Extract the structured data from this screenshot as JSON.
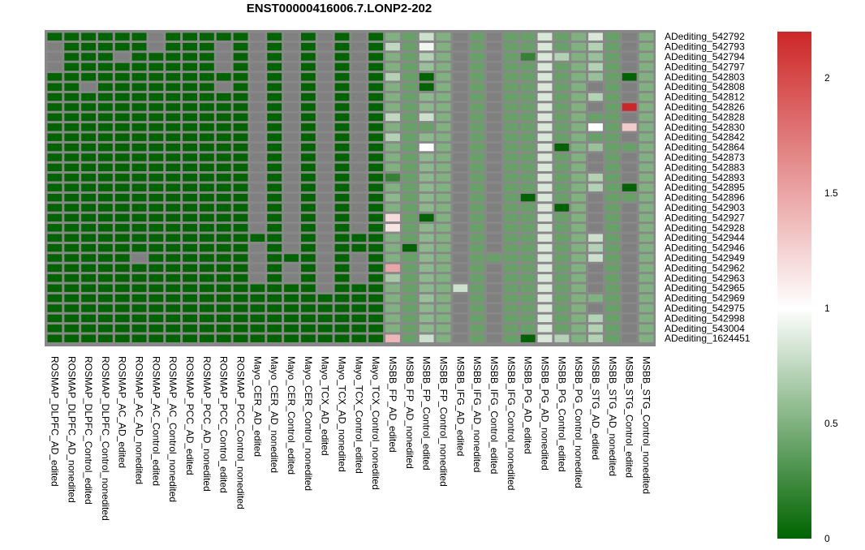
{
  "chart_data": {
    "type": "heatmap",
    "title": "ENST00000416006.7.LONP2-202",
    "xlabel": "",
    "ylabel": "",
    "na_color": "#808080",
    "color_scale": {
      "min": 0,
      "mid": 1,
      "max": 2.2,
      "low_color": "#006400",
      "mid_color": "#ffffff",
      "high_color": "#cd2626",
      "ticks": [
        0,
        0.5,
        1,
        1.5,
        2
      ],
      "tick_labels": [
        "0",
        "0.5",
        "1",
        "1.5",
        "2"
      ]
    },
    "columns": [
      "ROSMAP_DLPFC_AD_edited",
      "ROSMAP_DLPFC_AD_nonedited",
      "ROSMAP_DLPFC_Control_edited",
      "ROSMAP_DLPFC_Control_nonedited",
      "ROSMAP_AC_AD_edited",
      "ROSMAP_AC_AD_nonedited",
      "ROSMAP_AC_Control_edited",
      "ROSMAP_AC_Control_nonedited",
      "ROSMAP_PCC_AD_edited",
      "ROSMAP_PCC_AD_nonedited",
      "ROSMAP_PCC_Control_edited",
      "ROSMAP_PCC_Control_nonedited",
      "Mayo_CER_AD_edited",
      "Mayo_CER_AD_nonedited",
      "Mayo_CER_Control_edited",
      "Mayo_CER_Control_nonedited",
      "Mayo_TCX_AD_edited",
      "Mayo_TCX_AD_nonedited",
      "Mayo_TCX_Control_edited",
      "Mayo_TCX_Control_nonedited",
      "MSBB_FP_AD_edited",
      "MSBB_FP_AD_nonedited",
      "MSBB_FP_Control_edited",
      "MSBB_FP_Control_nonedited",
      "MSBB_IFG_AD_edited",
      "MSBB_IFG_AD_nonedited",
      "MSBB_IFG_Control_edited",
      "MSBB_IFG_Control_nonedited",
      "MSBB_PG_AD_edited",
      "MSBB_PG_AD_nonedited",
      "MSBB_PG_Control_edited",
      "MSBB_PG_Control_nonedited",
      "MSBB_STG_AD_edited",
      "MSBB_STG_AD_nonedited",
      "MSBB_STG_Control_edited",
      "MSBB_STG_Control_nonedited"
    ],
    "rows": [
      "ADediting_542792",
      "ADediting_542793",
      "ADediting_542794",
      "ADediting_542797",
      "ADediting_542803",
      "ADediting_542808",
      "ADediting_542812",
      "ADediting_542826",
      "ADediting_542828",
      "ADediting_542830",
      "ADediting_542842",
      "ADediting_542864",
      "ADediting_542873",
      "ADediting_542883",
      "ADediting_542893",
      "ADediting_542895",
      "ADediting_542896",
      "ADediting_542903",
      "ADediting_542927",
      "ADediting_542928",
      "ADediting_542944",
      "ADediting_542946",
      "ADediting_542949",
      "ADediting_542962",
      "ADediting_542963",
      "ADediting_542965",
      "ADediting_542969",
      "ADediting_542975",
      "ADediting_542998",
      "ADediting_543004",
      "ADediting_1624451"
    ],
    "values": [
      [
        0.0,
        0.0,
        0.0,
        0.0,
        0.0,
        0.0,
        null,
        0.0,
        0.0,
        0.0,
        0.0,
        0.0,
        null,
        0.0,
        null,
        0.0,
        null,
        0.0,
        null,
        0.0,
        0.5,
        0.4,
        0.8,
        0.5,
        null,
        0.4,
        null,
        0.4,
        0.4,
        0.85,
        0.4,
        0.5,
        0.85,
        0.4,
        null,
        0.5
      ],
      [
        null,
        0.0,
        0.0,
        0.0,
        0.0,
        0.0,
        null,
        0.0,
        0.0,
        0.0,
        null,
        0.0,
        null,
        0.0,
        null,
        0.0,
        null,
        0.0,
        null,
        0.0,
        0.75,
        0.4,
        0.95,
        0.5,
        null,
        0.4,
        null,
        0.4,
        0.4,
        0.85,
        0.4,
        0.5,
        0.7,
        0.4,
        null,
        0.5
      ],
      [
        null,
        0.0,
        0.0,
        0.0,
        null,
        0.0,
        0.0,
        0.0,
        0.0,
        0.0,
        null,
        0.0,
        null,
        0.0,
        null,
        0.0,
        null,
        0.0,
        null,
        0.0,
        0.5,
        0.4,
        0.7,
        0.5,
        null,
        0.4,
        null,
        0.4,
        0.2,
        0.85,
        0.7,
        0.5,
        0.6,
        0.4,
        null,
        0.5
      ],
      [
        null,
        0.0,
        0.0,
        0.0,
        0.0,
        0.0,
        0.0,
        0.0,
        0.0,
        0.0,
        null,
        0.0,
        null,
        0.0,
        null,
        0.0,
        null,
        0.0,
        null,
        0.0,
        0.5,
        0.4,
        0.6,
        0.5,
        null,
        0.4,
        null,
        0.4,
        0.4,
        0.85,
        0.4,
        0.5,
        0.7,
        0.4,
        null,
        0.5
      ],
      [
        0.0,
        0.0,
        0.0,
        0.0,
        0.0,
        0.0,
        0.0,
        0.0,
        0.0,
        0.0,
        0.0,
        0.0,
        null,
        0.0,
        null,
        0.0,
        null,
        0.0,
        null,
        0.0,
        0.7,
        0.4,
        0.0,
        0.5,
        null,
        0.4,
        null,
        0.4,
        0.4,
        0.85,
        0.4,
        0.5,
        0.6,
        0.4,
        0.0,
        0.5
      ],
      [
        0.0,
        0.0,
        null,
        0.0,
        0.0,
        0.0,
        0.0,
        0.0,
        0.0,
        0.0,
        null,
        0.0,
        null,
        0.0,
        null,
        0.0,
        null,
        0.0,
        null,
        0.0,
        0.5,
        0.4,
        0.0,
        0.5,
        null,
        0.4,
        null,
        0.4,
        0.4,
        0.85,
        0.4,
        0.5,
        null,
        0.4,
        null,
        0.5
      ],
      [
        0.0,
        0.0,
        0.0,
        0.0,
        0.0,
        0.0,
        0.0,
        0.0,
        0.0,
        0.0,
        0.0,
        0.0,
        null,
        0.0,
        null,
        0.0,
        null,
        0.0,
        null,
        0.0,
        0.5,
        0.4,
        0.55,
        0.5,
        null,
        0.4,
        null,
        0.4,
        0.4,
        0.85,
        0.4,
        0.5,
        0.7,
        0.4,
        null,
        0.5
      ],
      [
        0.0,
        0.0,
        0.0,
        0.0,
        0.0,
        0.0,
        0.0,
        0.0,
        0.0,
        0.0,
        0.0,
        0.0,
        null,
        0.0,
        null,
        0.0,
        null,
        0.0,
        null,
        0.0,
        0.5,
        0.4,
        0.55,
        0.5,
        null,
        0.4,
        null,
        0.4,
        0.4,
        0.85,
        0.4,
        0.5,
        null,
        0.4,
        2.2,
        0.5
      ],
      [
        0.0,
        0.0,
        0.0,
        0.0,
        0.0,
        0.0,
        0.0,
        0.0,
        0.0,
        0.0,
        0.0,
        0.0,
        null,
        0.0,
        null,
        0.0,
        null,
        0.0,
        null,
        0.0,
        0.75,
        0.4,
        0.8,
        0.5,
        null,
        0.4,
        null,
        0.4,
        0.4,
        0.85,
        0.4,
        0.5,
        0.4,
        0.4,
        null,
        0.5
      ],
      [
        0.0,
        0.0,
        0.0,
        0.0,
        0.0,
        0.0,
        0.0,
        0.0,
        0.0,
        0.0,
        0.0,
        0.0,
        null,
        0.0,
        null,
        0.0,
        null,
        0.0,
        null,
        0.0,
        0.5,
        0.4,
        0.4,
        0.5,
        null,
        0.4,
        null,
        0.4,
        0.4,
        0.85,
        0.4,
        0.5,
        1.0,
        0.4,
        1.3,
        0.5
      ],
      [
        0.0,
        0.0,
        0.0,
        0.0,
        0.0,
        0.0,
        0.0,
        0.0,
        0.0,
        0.0,
        0.0,
        0.0,
        null,
        0.0,
        null,
        0.0,
        null,
        0.0,
        null,
        0.0,
        0.7,
        0.4,
        0.55,
        0.5,
        null,
        0.4,
        null,
        0.4,
        0.4,
        0.85,
        0.4,
        0.5,
        0.4,
        0.4,
        null,
        0.5
      ],
      [
        0.0,
        0.0,
        0.0,
        0.0,
        0.0,
        0.0,
        0.0,
        0.0,
        0.0,
        0.0,
        0.0,
        0.0,
        null,
        0.0,
        null,
        0.0,
        null,
        0.0,
        null,
        0.0,
        0.5,
        0.4,
        1.0,
        0.5,
        null,
        0.4,
        null,
        0.4,
        0.4,
        0.85,
        0.0,
        0.5,
        0.6,
        0.4,
        0.4,
        0.5
      ],
      [
        0.0,
        0.0,
        0.0,
        0.0,
        0.0,
        0.0,
        0.0,
        0.0,
        0.0,
        0.0,
        0.0,
        0.0,
        null,
        0.0,
        null,
        0.0,
        null,
        0.0,
        null,
        0.0,
        0.5,
        0.4,
        0.55,
        0.5,
        null,
        0.4,
        null,
        0.4,
        0.4,
        0.85,
        0.4,
        0.5,
        null,
        0.4,
        null,
        0.5
      ],
      [
        0.0,
        0.0,
        0.0,
        0.0,
        0.0,
        0.0,
        0.0,
        0.0,
        0.0,
        0.0,
        0.0,
        0.0,
        null,
        0.0,
        null,
        0.0,
        null,
        0.0,
        null,
        0.0,
        0.5,
        0.4,
        0.55,
        0.5,
        null,
        0.4,
        null,
        0.4,
        0.4,
        0.85,
        0.4,
        0.5,
        null,
        0.4,
        null,
        0.5
      ],
      [
        0.0,
        0.0,
        0.0,
        0.0,
        0.0,
        0.0,
        0.0,
        0.0,
        0.0,
        0.0,
        0.0,
        0.0,
        null,
        0.0,
        null,
        0.0,
        null,
        0.0,
        null,
        0.0,
        0.2,
        0.4,
        0.55,
        0.5,
        null,
        0.4,
        null,
        0.4,
        0.4,
        0.85,
        0.4,
        0.5,
        0.7,
        0.4,
        null,
        0.5
      ],
      [
        0.0,
        0.0,
        0.0,
        0.0,
        0.0,
        0.0,
        0.0,
        0.0,
        0.0,
        0.0,
        0.0,
        0.0,
        null,
        0.0,
        null,
        0.0,
        null,
        0.0,
        null,
        0.0,
        0.5,
        0.4,
        0.55,
        0.5,
        null,
        0.4,
        null,
        0.4,
        0.4,
        0.85,
        0.4,
        0.5,
        0.7,
        0.4,
        0.0,
        0.5
      ],
      [
        0.0,
        0.0,
        0.0,
        0.0,
        0.0,
        0.0,
        0.0,
        0.0,
        0.0,
        0.0,
        0.0,
        0.0,
        null,
        0.0,
        null,
        0.0,
        null,
        0.0,
        null,
        0.0,
        0.55,
        0.4,
        0.55,
        0.5,
        null,
        0.4,
        null,
        0.4,
        0.0,
        0.85,
        0.4,
        0.5,
        null,
        0.4,
        0.4,
        0.5
      ],
      [
        0.0,
        0.0,
        0.0,
        0.0,
        0.0,
        0.0,
        0.0,
        0.0,
        0.0,
        0.0,
        0.0,
        0.0,
        null,
        0.0,
        null,
        0.0,
        null,
        0.0,
        null,
        0.0,
        0.5,
        0.4,
        0.55,
        0.5,
        null,
        0.4,
        null,
        0.4,
        0.4,
        0.85,
        0.0,
        0.5,
        null,
        0.4,
        null,
        0.5
      ],
      [
        0.0,
        0.0,
        0.0,
        0.0,
        0.0,
        0.0,
        0.0,
        0.0,
        0.0,
        0.0,
        0.0,
        0.0,
        null,
        0.0,
        null,
        0.0,
        null,
        0.0,
        null,
        0.0,
        1.2,
        0.4,
        0.0,
        0.5,
        null,
        0.4,
        null,
        0.4,
        0.4,
        0.85,
        0.4,
        0.5,
        null,
        0.4,
        null,
        0.5
      ],
      [
        0.0,
        0.0,
        0.0,
        0.0,
        0.0,
        0.0,
        0.0,
        0.0,
        0.0,
        0.0,
        0.0,
        0.0,
        null,
        0.0,
        null,
        0.0,
        null,
        0.0,
        null,
        0.0,
        1.15,
        0.4,
        0.55,
        0.5,
        null,
        0.4,
        null,
        0.4,
        0.4,
        0.85,
        0.4,
        0.5,
        null,
        0.4,
        null,
        0.5
      ],
      [
        0.0,
        0.0,
        0.0,
        0.0,
        0.0,
        0.0,
        0.0,
        0.0,
        0.0,
        0.0,
        0.0,
        0.0,
        0.0,
        0.0,
        null,
        0.0,
        null,
        0.0,
        0.0,
        0.0,
        0.5,
        0.4,
        0.55,
        0.5,
        null,
        0.4,
        null,
        0.4,
        0.4,
        0.85,
        0.4,
        0.5,
        0.8,
        0.4,
        null,
        0.5
      ],
      [
        0.0,
        0.0,
        0.0,
        0.0,
        0.0,
        0.0,
        0.0,
        0.0,
        0.0,
        0.0,
        0.0,
        0.0,
        null,
        0.0,
        null,
        0.0,
        null,
        0.0,
        0.0,
        0.0,
        0.5,
        0.0,
        0.55,
        0.5,
        null,
        0.4,
        null,
        0.4,
        0.4,
        0.85,
        0.4,
        0.5,
        0.7,
        0.4,
        null,
        0.5
      ],
      [
        0.0,
        0.0,
        0.0,
        0.0,
        0.0,
        null,
        0.0,
        0.0,
        0.0,
        0.0,
        0.0,
        0.0,
        null,
        0.0,
        0.0,
        0.0,
        null,
        0.0,
        null,
        0.0,
        0.5,
        0.4,
        0.55,
        0.5,
        null,
        0.4,
        0.4,
        0.4,
        0.4,
        0.85,
        0.4,
        0.5,
        0.8,
        0.4,
        null,
        0.5
      ],
      [
        0.0,
        0.0,
        0.0,
        0.0,
        0.0,
        0.0,
        0.0,
        0.0,
        0.0,
        0.0,
        0.0,
        0.0,
        null,
        0.0,
        null,
        0.0,
        null,
        0.0,
        null,
        0.0,
        1.5,
        0.4,
        0.55,
        0.5,
        null,
        0.4,
        null,
        0.4,
        0.4,
        0.85,
        0.4,
        0.5,
        null,
        0.4,
        null,
        0.5
      ],
      [
        0.0,
        0.0,
        0.0,
        0.0,
        0.0,
        0.0,
        0.0,
        0.0,
        0.0,
        0.0,
        0.0,
        0.0,
        null,
        0.0,
        null,
        0.0,
        null,
        0.0,
        null,
        0.0,
        0.65,
        0.4,
        0.55,
        0.5,
        null,
        0.4,
        null,
        0.4,
        0.4,
        0.85,
        0.4,
        0.5,
        null,
        0.4,
        null,
        0.5
      ],
      [
        0.0,
        0.0,
        0.0,
        0.0,
        0.0,
        0.0,
        0.0,
        0.0,
        0.0,
        0.0,
        0.0,
        0.0,
        0.0,
        0.0,
        0.0,
        0.0,
        null,
        0.0,
        0.0,
        0.0,
        0.5,
        0.4,
        0.55,
        0.5,
        0.8,
        0.4,
        null,
        0.4,
        0.4,
        0.85,
        0.4,
        0.5,
        null,
        0.4,
        null,
        0.5
      ],
      [
        0.0,
        0.0,
        0.0,
        0.0,
        0.0,
        0.0,
        0.0,
        0.0,
        0.0,
        0.0,
        0.0,
        0.0,
        0.0,
        0.0,
        0.0,
        0.0,
        0.0,
        0.0,
        0.0,
        0.0,
        0.5,
        0.4,
        0.6,
        0.5,
        null,
        0.4,
        null,
        0.4,
        0.4,
        0.85,
        0.4,
        0.5,
        0.5,
        0.4,
        null,
        0.5
      ],
      [
        0.0,
        0.0,
        0.0,
        0.0,
        0.0,
        0.0,
        0.0,
        0.0,
        0.0,
        0.0,
        0.0,
        0.0,
        0.0,
        0.0,
        0.0,
        0.0,
        0.0,
        0.0,
        0.0,
        0.0,
        0.5,
        0.4,
        0.55,
        0.5,
        null,
        0.4,
        null,
        0.4,
        0.4,
        0.85,
        0.4,
        0.5,
        null,
        0.4,
        null,
        0.5
      ],
      [
        0.0,
        0.0,
        0.0,
        0.0,
        0.0,
        0.0,
        0.0,
        0.0,
        0.0,
        0.0,
        0.0,
        0.0,
        0.0,
        0.0,
        0.0,
        0.0,
        0.0,
        0.0,
        0.0,
        0.0,
        0.5,
        0.4,
        0.55,
        0.5,
        null,
        0.4,
        null,
        0.4,
        0.4,
        0.85,
        0.4,
        0.5,
        0.7,
        0.4,
        null,
        0.5
      ],
      [
        0.0,
        0.0,
        0.0,
        0.0,
        0.0,
        0.0,
        0.0,
        0.0,
        0.0,
        0.0,
        0.0,
        0.0,
        0.0,
        0.0,
        0.0,
        0.0,
        0.0,
        0.0,
        0.0,
        0.0,
        0.5,
        0.4,
        0.55,
        0.5,
        null,
        0.4,
        null,
        0.4,
        0.4,
        0.85,
        0.4,
        0.5,
        0.7,
        0.4,
        null,
        0.5
      ],
      [
        0.0,
        0.0,
        0.0,
        0.0,
        0.0,
        0.0,
        0.0,
        0.0,
        0.0,
        0.0,
        0.0,
        0.0,
        0.0,
        0.0,
        0.0,
        0.0,
        0.0,
        0.0,
        0.0,
        0.0,
        1.4,
        0.4,
        0.8,
        0.5,
        null,
        0.4,
        null,
        0.4,
        0.0,
        0.85,
        0.7,
        0.5,
        0.7,
        0.4,
        null,
        0.5
      ]
    ]
  }
}
